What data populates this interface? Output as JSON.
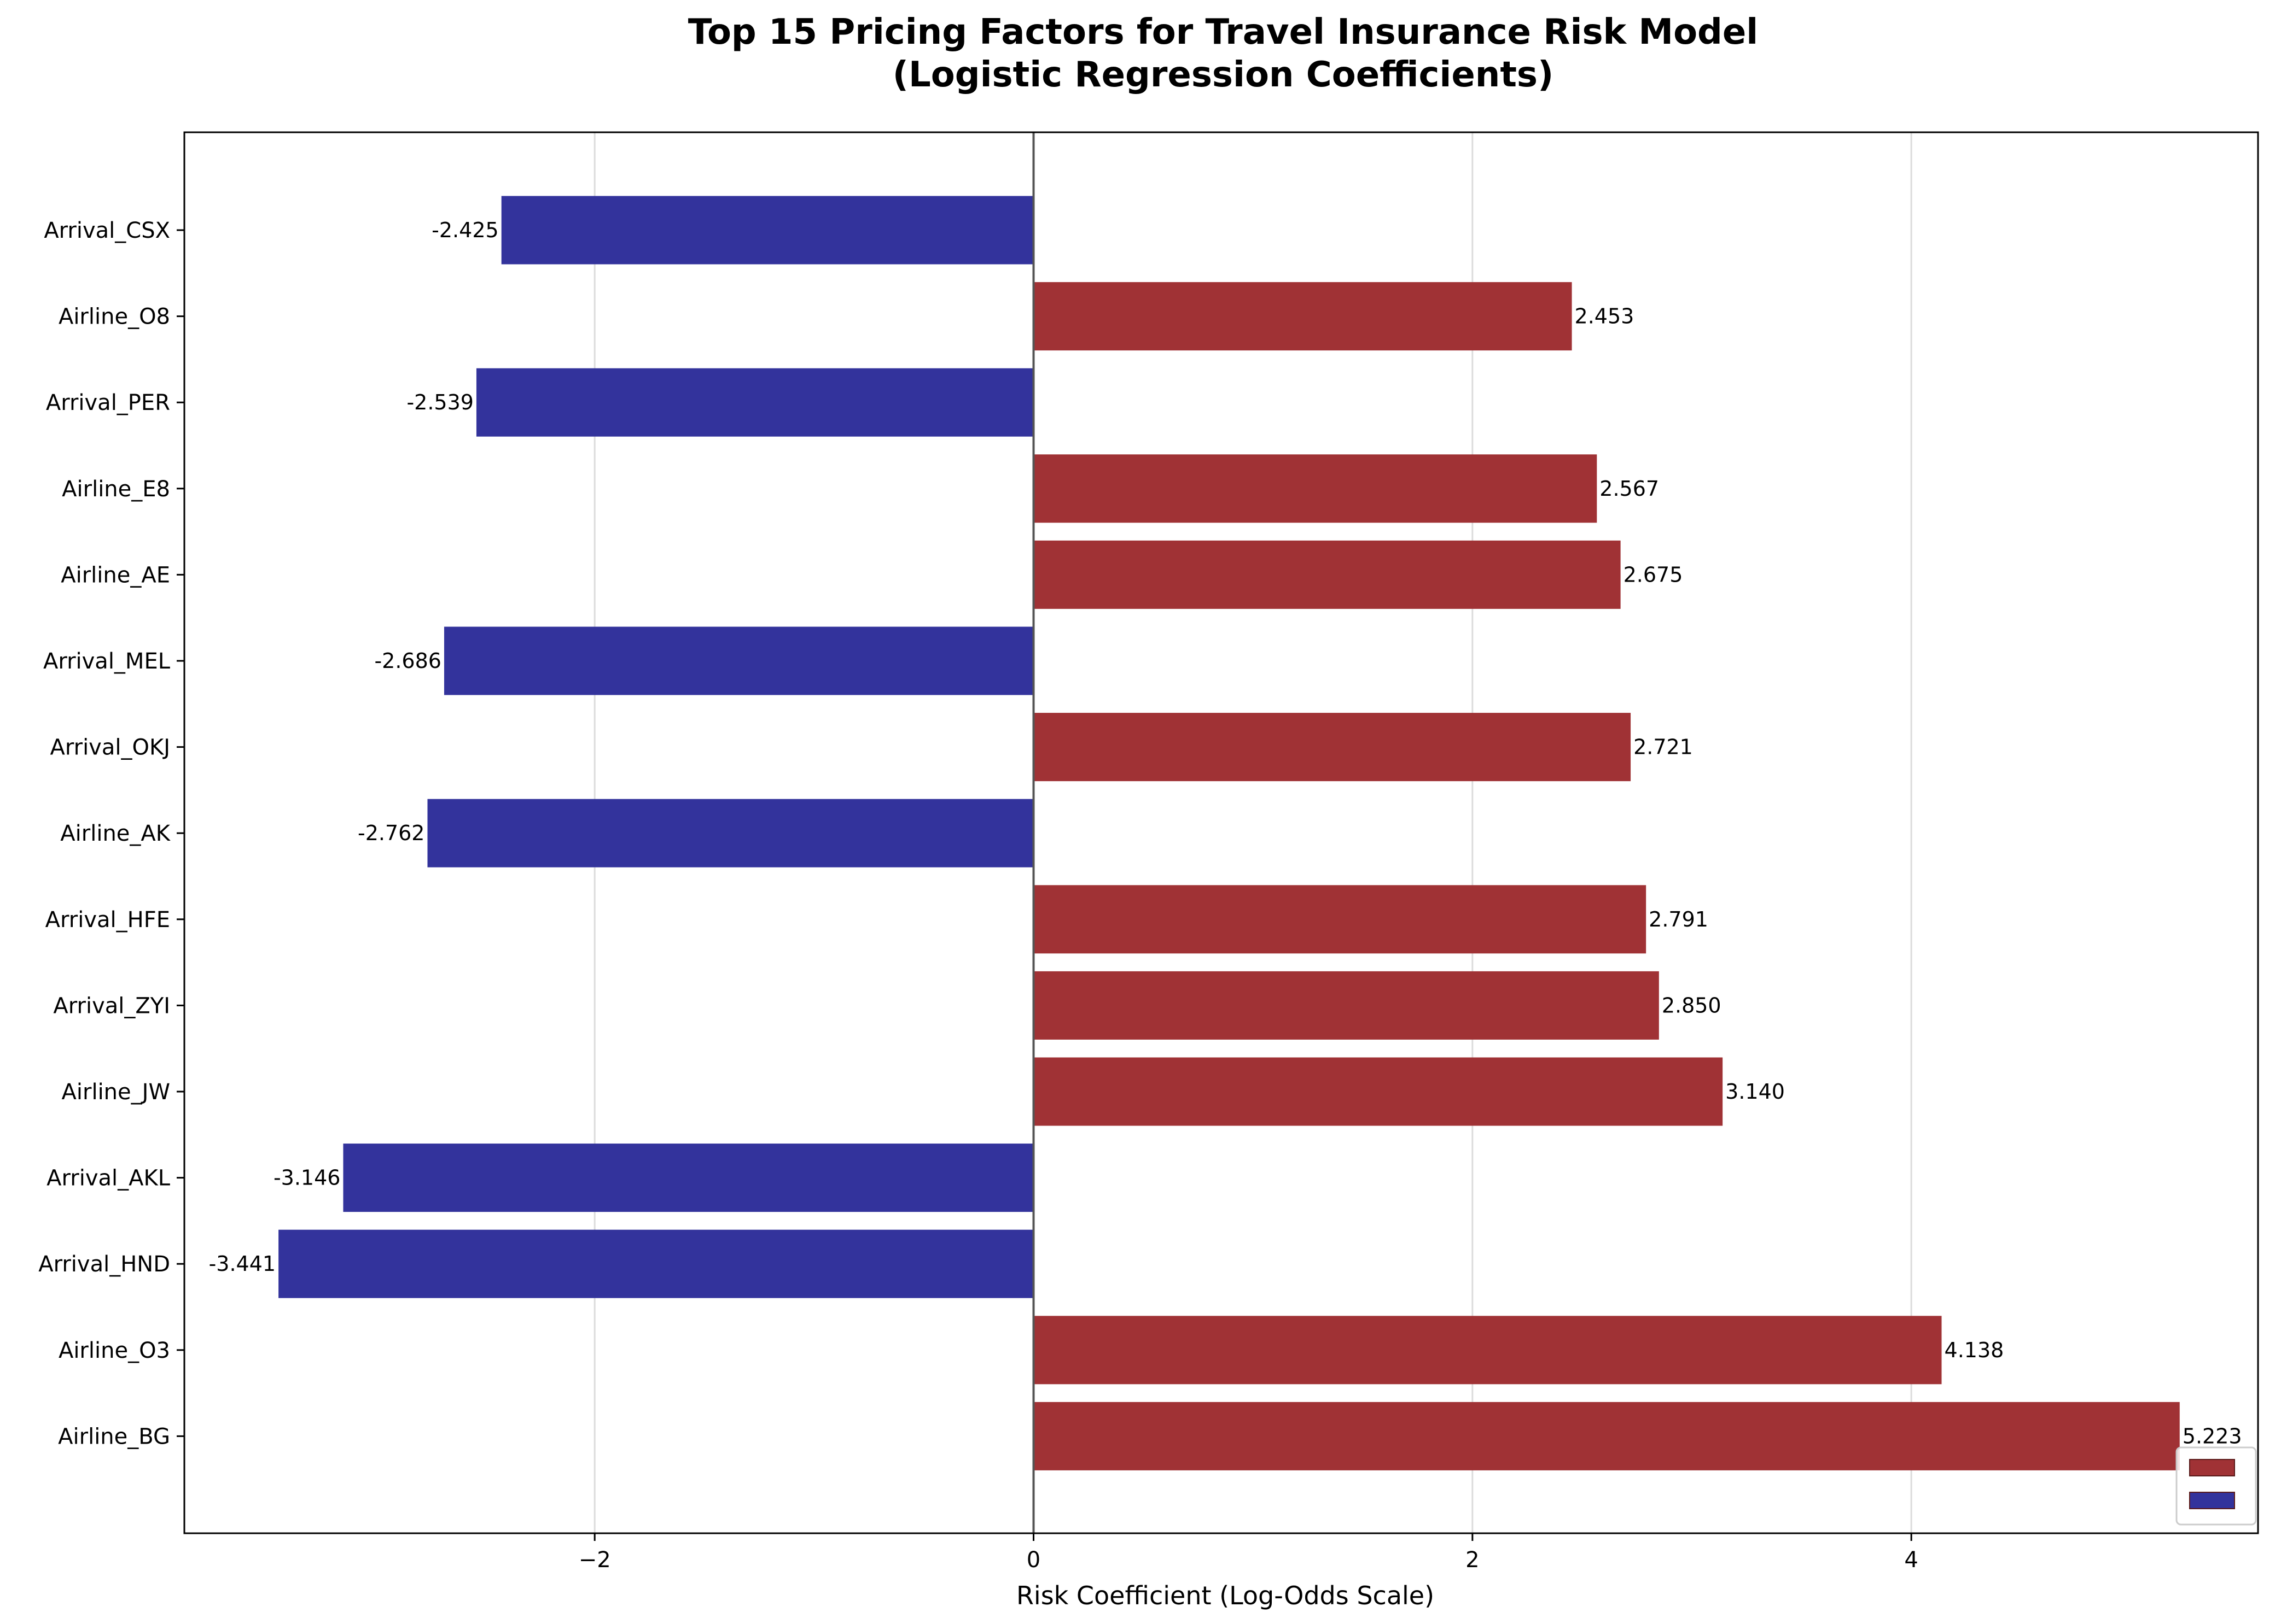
{
  "chart_data": {
    "type": "bar",
    "orientation": "horizontal",
    "title_lines": [
      "Top 15 Pricing Factors for Travel Insurance Risk Model",
      "(Logistic Regression Coefficients)"
    ],
    "xlabel": "Risk Coefficient (Log-Odds Scale)",
    "ylabel": "",
    "xlim": [
      -3.87,
      5.58
    ],
    "xticks": [
      -2,
      0,
      2,
      4
    ],
    "xtick_labels": [
      "−2",
      "0",
      "2",
      "4"
    ],
    "grid": "vertical",
    "legend": "lower-right",
    "legend_entries": [
      {
        "label": "",
        "color": "#a03235"
      },
      {
        "label": "",
        "color": "#33339c"
      }
    ],
    "colors": {
      "positive": "#a03235",
      "negative": "#33339c"
    },
    "categories": [
      "Arrival_CSX",
      "Airline_O8",
      "Arrival_PER",
      "Airline_E8",
      "Airline_AE",
      "Arrival_MEL",
      "Arrival_OKJ",
      "Airline_AK",
      "Arrival_HFE",
      "Arrival_ZYI",
      "Airline_JW",
      "Arrival_AKL",
      "Arrival_HND",
      "Airline_O3",
      "Airline_BG"
    ],
    "values": [
      -2.425,
      2.453,
      -2.539,
      2.567,
      2.675,
      -2.686,
      2.721,
      -2.762,
      2.791,
      2.85,
      3.14,
      -3.146,
      -3.441,
      4.138,
      5.223
    ],
    "value_labels": [
      "-2.425",
      "2.453",
      "-2.539",
      "2.567",
      "2.675",
      "-2.686",
      "2.721",
      "-2.762",
      "2.791",
      "2.850",
      "3.140",
      "-3.146",
      "-3.441",
      "4.138",
      "5.223"
    ]
  }
}
